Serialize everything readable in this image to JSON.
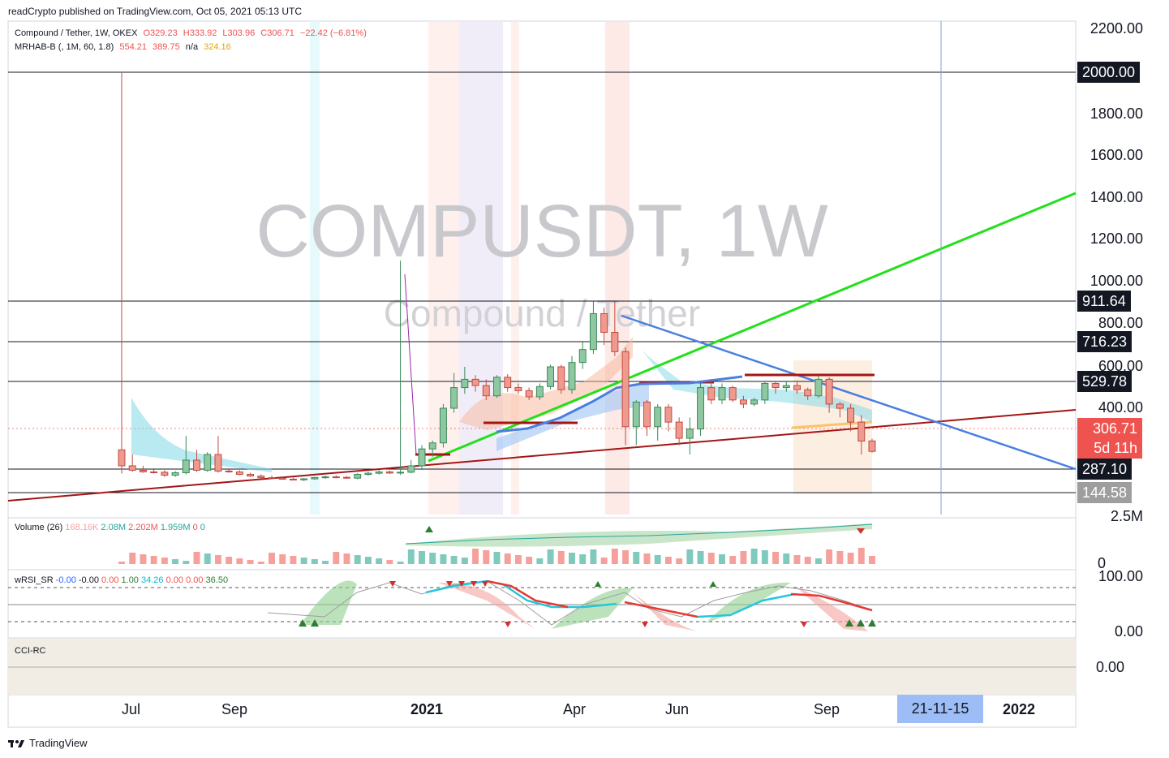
{
  "publisher": "readCrypto published on TradingView.com, Oct 05, 2021 05:13 UTC",
  "legend": {
    "symbol": "Compound / Tether, 1W, OKEX",
    "open": "O329.23",
    "high": "H333.92",
    "low": "L303.96",
    "close": "C306.71",
    "change": "−22.42 (−6.81%)",
    "indicator": "MRHAB-B (, 1M, 60, 1.8)",
    "ind_v1": "554.21",
    "ind_v2": "389.75",
    "ind_v3": "n/a",
    "ind_v4": "324.16"
  },
  "watermark": {
    "symbol": "COMPUSDT, 1W",
    "name": "Compound / Tether"
  },
  "volume_legend": {
    "label": "Volume (26)",
    "v1": "168.16K",
    "v2": "2.08M",
    "v3": "2.202M",
    "v4": "1.959M",
    "v5": "0",
    "v6": "0"
  },
  "rsi_legend": {
    "label": "wRSI_SR",
    "v1": "-0.00",
    "v2": "-0.00",
    "v3": "0.00",
    "v4": "1.00",
    "v5": "34.26",
    "v6": "0.00",
    "v7": "0.00",
    "v8": "36.50"
  },
  "cci_legend": {
    "label": "CCI-RC"
  },
  "price_axis": [
    "2200.00",
    "1800.00",
    "1600.00",
    "1400.00",
    "1200.00",
    "1000.00",
    "800.00",
    "600.00",
    "400.00"
  ],
  "price_tags": {
    "t2000": "2000.00",
    "t911": "911.64",
    "t716": "716.23",
    "t529": "529.78",
    "close": "306.71",
    "countdown": "5d 11h",
    "t287": "287.10",
    "t144": "144.58"
  },
  "volume_axis": [
    "2.5M",
    "0"
  ],
  "rsi_axis": [
    "100.00",
    "0.00"
  ],
  "cci_axis": [
    "0.00"
  ],
  "time_axis": [
    "Jul",
    "Sep",
    "2021",
    "Apr",
    "Jun",
    "Sep",
    "2022"
  ],
  "time_highlight": "21-11-15",
  "footer": "TradingView",
  "colors": {
    "up": "#26a69a",
    "down": "#ef5350",
    "green_line": "#22e01a",
    "blue_line": "#4a7fe0",
    "red_line": "#a31515"
  },
  "chart_data": {
    "type": "candlestick",
    "title": "COMPUSDT, 1W",
    "exchange": "OKEX",
    "ohlc_last": {
      "open": 329.23,
      "high": 333.92,
      "low": 303.96,
      "close": 306.71
    },
    "candles": [
      {
        "o": 310,
        "h": 2000,
        "l": 260,
        "c": 290
      },
      {
        "o": 290,
        "h": 300,
        "l": 270,
        "c": 280
      },
      {
        "o": 280,
        "h": 290,
        "l": 265,
        "c": 270
      },
      {
        "o": 270,
        "h": 285,
        "l": 260,
        "c": 268
      },
      {
        "o": 268,
        "h": 280,
        "l": 240,
        "c": 250
      },
      {
        "o": 250,
        "h": 275,
        "l": 240,
        "c": 265
      },
      {
        "o": 265,
        "h": 340,
        "l": 255,
        "c": 295
      },
      {
        "o": 295,
        "h": 310,
        "l": 270,
        "c": 280
      },
      {
        "o": 280,
        "h": 305,
        "l": 270,
        "c": 300
      },
      {
        "o": 300,
        "h": 340,
        "l": 265,
        "c": 275
      },
      {
        "o": 275,
        "h": 285,
        "l": 265,
        "c": 270
      },
      {
        "o": 270,
        "h": 280,
        "l": 250,
        "c": 255
      },
      {
        "o": 255,
        "h": 265,
        "l": 240,
        "c": 245
      },
      {
        "o": 245,
        "h": 255,
        "l": 230,
        "c": 235
      },
      {
        "o": 235,
        "h": 248,
        "l": 228,
        "c": 232
      },
      {
        "o": 232,
        "h": 240,
        "l": 222,
        "c": 226
      },
      {
        "o": 226,
        "h": 236,
        "l": 218,
        "c": 222
      },
      {
        "o": 222,
        "h": 232,
        "l": 215,
        "c": 228
      },
      {
        "o": 228,
        "h": 240,
        "l": 222,
        "c": 236
      },
      {
        "o": 236,
        "h": 248,
        "l": 228,
        "c": 240
      },
      {
        "o": 240,
        "h": 250,
        "l": 232,
        "c": 237
      },
      {
        "o": 237,
        "h": 246,
        "l": 228,
        "c": 232
      },
      {
        "o": 232,
        "h": 262,
        "l": 226,
        "c": 255
      },
      {
        "o": 255,
        "h": 272,
        "l": 246,
        "c": 262
      },
      {
        "o": 262,
        "h": 280,
        "l": 254,
        "c": 270
      },
      {
        "o": 270,
        "h": 278,
        "l": 258,
        "c": 263
      },
      {
        "o": 263,
        "h": 1100,
        "l": 252,
        "c": 268
      },
      {
        "o": 268,
        "h": 295,
        "l": 262,
        "c": 290
      },
      {
        "o": 290,
        "h": 320,
        "l": 282,
        "c": 312
      },
      {
        "o": 312,
        "h": 330,
        "l": 298,
        "c": 325
      },
      {
        "o": 325,
        "h": 420,
        "l": 315,
        "c": 400
      },
      {
        "o": 400,
        "h": 570,
        "l": 390,
        "c": 500
      },
      {
        "o": 500,
        "h": 600,
        "l": 470,
        "c": 540
      },
      {
        "o": 540,
        "h": 560,
        "l": 480,
        "c": 510
      },
      {
        "o": 510,
        "h": 540,
        "l": 440,
        "c": 460
      },
      {
        "o": 460,
        "h": 560,
        "l": 450,
        "c": 550
      },
      {
        "o": 550,
        "h": 565,
        "l": 480,
        "c": 500
      },
      {
        "o": 500,
        "h": 520,
        "l": 470,
        "c": 485
      },
      {
        "o": 485,
        "h": 500,
        "l": 440,
        "c": 455
      },
      {
        "o": 455,
        "h": 520,
        "l": 440,
        "c": 505
      },
      {
        "o": 505,
        "h": 610,
        "l": 490,
        "c": 600
      },
      {
        "o": 600,
        "h": 610,
        "l": 470,
        "c": 490
      },
      {
        "o": 490,
        "h": 650,
        "l": 470,
        "c": 620
      },
      {
        "o": 620,
        "h": 720,
        "l": 590,
        "c": 680
      },
      {
        "o": 680,
        "h": 910,
        "l": 660,
        "c": 850
      },
      {
        "o": 850,
        "h": 880,
        "l": 700,
        "c": 760
      },
      {
        "o": 760,
        "h": 910,
        "l": 650,
        "c": 670
      },
      {
        "o": 670,
        "h": 690,
        "l": 320,
        "c": 360
      },
      {
        "o": 360,
        "h": 440,
        "l": 320,
        "c": 430
      },
      {
        "o": 430,
        "h": 440,
        "l": 340,
        "c": 360
      },
      {
        "o": 360,
        "h": 420,
        "l": 330,
        "c": 405
      },
      {
        "o": 405,
        "h": 420,
        "l": 350,
        "c": 370
      },
      {
        "o": 370,
        "h": 380,
        "l": 320,
        "c": 335
      },
      {
        "o": 335,
        "h": 380,
        "l": 300,
        "c": 355
      },
      {
        "o": 355,
        "h": 520,
        "l": 340,
        "c": 500
      },
      {
        "o": 500,
        "h": 540,
        "l": 420,
        "c": 440
      },
      {
        "o": 440,
        "h": 520,
        "l": 420,
        "c": 500
      },
      {
        "o": 500,
        "h": 510,
        "l": 430,
        "c": 440
      },
      {
        "o": 440,
        "h": 460,
        "l": 400,
        "c": 420
      },
      {
        "o": 420,
        "h": 450,
        "l": 410,
        "c": 440
      },
      {
        "o": 440,
        "h": 530,
        "l": 420,
        "c": 520
      },
      {
        "o": 520,
        "h": 530,
        "l": 470,
        "c": 500
      },
      {
        "o": 500,
        "h": 530,
        "l": 480,
        "c": 510
      },
      {
        "o": 510,
        "h": 530,
        "l": 470,
        "c": 490
      },
      {
        "o": 490,
        "h": 500,
        "l": 440,
        "c": 460
      },
      {
        "o": 460,
        "h": 560,
        "l": 450,
        "c": 540
      },
      {
        "o": 540,
        "h": 550,
        "l": 390,
        "c": 420
      },
      {
        "o": 420,
        "h": 430,
        "l": 380,
        "c": 400
      },
      {
        "o": 400,
        "h": 420,
        "l": 350,
        "c": 370
      },
      {
        "o": 370,
        "h": 385,
        "l": 300,
        "c": 329
      },
      {
        "o": 329.23,
        "h": 333.92,
        "l": 303.96,
        "c": 306.71
      }
    ],
    "horizontal_levels": [
      2000,
      911.64,
      716.23,
      529.78,
      287.1,
      144.58
    ],
    "y_range": [
      0,
      2200
    ],
    "trendlines": [
      {
        "color": "green",
        "from": "Jan 2021",
        "to": "beyond Nov 2021",
        "value_start": 260,
        "value_end": 1420
      },
      {
        "color": "blue",
        "from": "Apr 2021",
        "to": "beyond Nov 2021",
        "value_start": 830,
        "value_end": 120
      },
      {
        "color": "darkred",
        "from": "Jun 2020",
        "to": "beyond Nov 2021",
        "value_start": 40,
        "value_end": 390
      }
    ],
    "volume_axis_max": "2.5M",
    "rsi_range": [
      0,
      100
    ]
  }
}
